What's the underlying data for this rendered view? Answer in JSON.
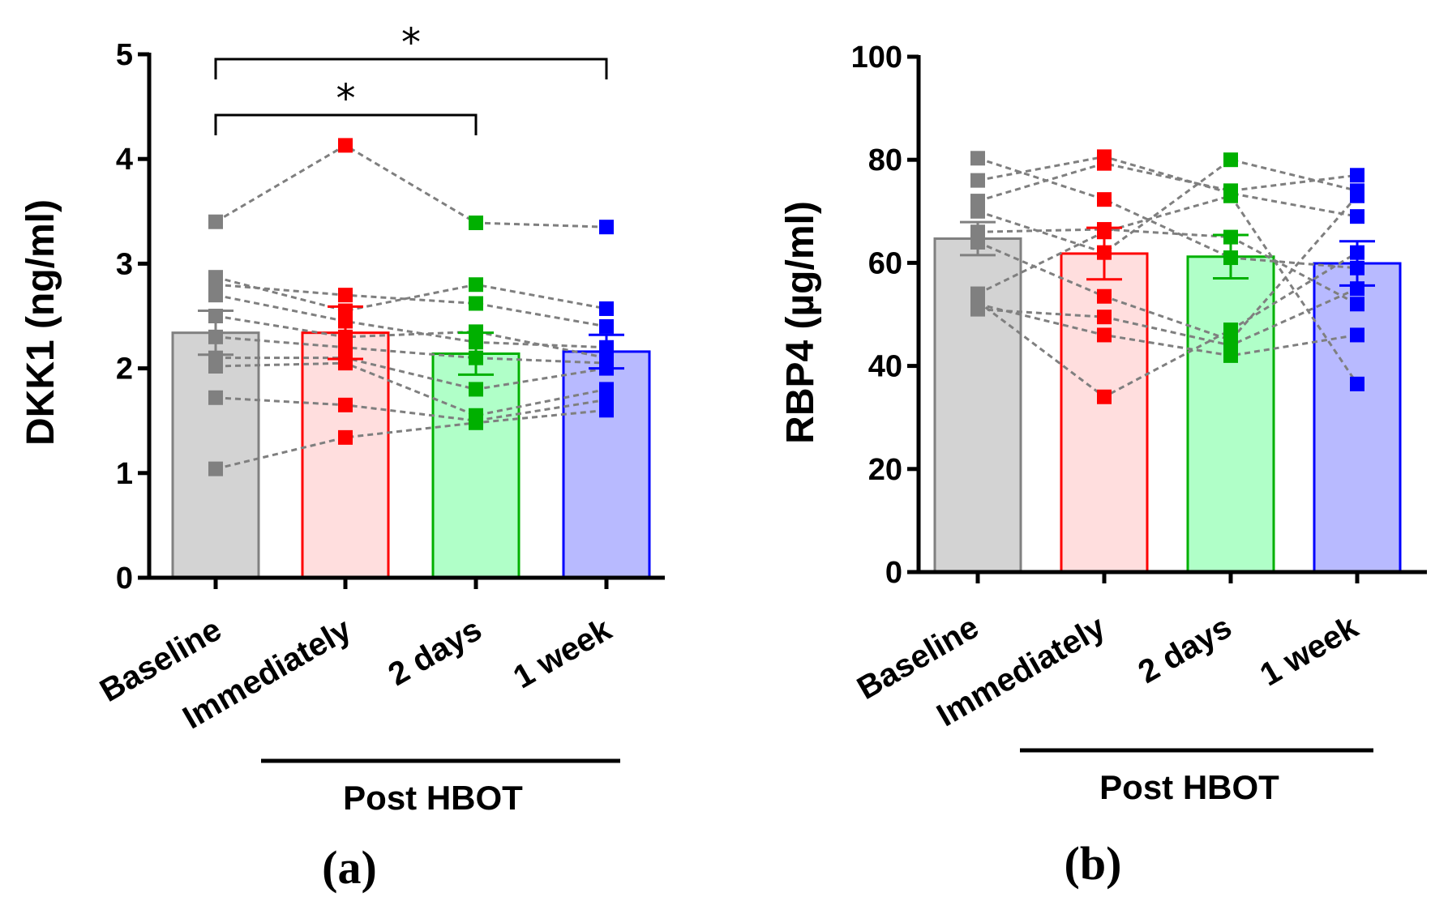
{
  "colors": {
    "edge": [
      "#808080",
      "#ff0000",
      "#00b000",
      "#0000ff"
    ],
    "fill": [
      "#d3d3d3",
      "#ffdede",
      "#b0ffc8",
      "#b8baff"
    ],
    "pair_line": "#7f7f7f"
  },
  "chart_data": [
    {
      "type": "bar",
      "panel_label": "(a)",
      "ylabel": "DKK1 (ng/ml)",
      "ylim": [
        0,
        5
      ],
      "yticks": [
        "0",
        "1",
        "2",
        "3",
        "4",
        "5"
      ],
      "categories": [
        "Baseline",
        "Immediately",
        "2 days",
        "1 week"
      ],
      "means": [
        2.34,
        2.34,
        2.14,
        2.16
      ],
      "sem": [
        0.21,
        0.25,
        0.2,
        0.16
      ],
      "subjects": [
        [
          3.4,
          4.13,
          3.39,
          3.35
        ],
        [
          2.87,
          2.55,
          2.8,
          2.57
        ],
        [
          2.8,
          2.7,
          2.62,
          2.4
        ],
        [
          2.7,
          2.45,
          2.25,
          2.2
        ],
        [
          2.5,
          2.3,
          2.35,
          2.1
        ],
        [
          2.3,
          2.2,
          2.1,
          2.05
        ],
        [
          2.1,
          2.1,
          1.8,
          2.0
        ],
        [
          2.02,
          2.05,
          1.55,
          1.8
        ],
        [
          1.72,
          1.65,
          1.5,
          1.7
        ],
        [
          1.04,
          1.34,
          1.48,
          1.6
        ]
      ],
      "comparisons": [
        {
          "from": 0,
          "to": 2,
          "label": "*"
        },
        {
          "from": 0,
          "to": 3,
          "label": "*"
        }
      ],
      "group_label": "Post  HBOT"
    },
    {
      "type": "bar",
      "panel_label": "(b)",
      "ylabel": "RBP4 (µg/ml)",
      "ylim": [
        0,
        100
      ],
      "yticks": [
        "0",
        "20",
        "40",
        "60",
        "80",
        "100"
      ],
      "categories": [
        "Baseline",
        "Immediately",
        "2 days",
        "1 week"
      ],
      "means": [
        64.7,
        61.8,
        61.2,
        59.9
      ],
      "sem": [
        3.2,
        5.0,
        4.2,
        4.3
      ],
      "subjects": [
        [
          80.3,
          72.3,
          61.0,
          59.0
        ],
        [
          76.0,
          80.6,
          73.5,
          69.0
        ],
        [
          72.0,
          79.3,
          74.0,
          77.0
        ],
        [
          70.0,
          62.0,
          80.0,
          74.0
        ],
        [
          66.0,
          66.5,
          65.0,
          52.0
        ],
        [
          64.0,
          53.5,
          45.0,
          73.0
        ],
        [
          54.0,
          66.0,
          73.0,
          36.5
        ],
        [
          52.0,
          46.0,
          42.0,
          46.0
        ],
        [
          51.0,
          49.5,
          44.0,
          55.0
        ],
        [
          52.5,
          34.0,
          47.0,
          62.0
        ]
      ],
      "comparisons": [],
      "group_label": "Post  HBOT"
    }
  ]
}
